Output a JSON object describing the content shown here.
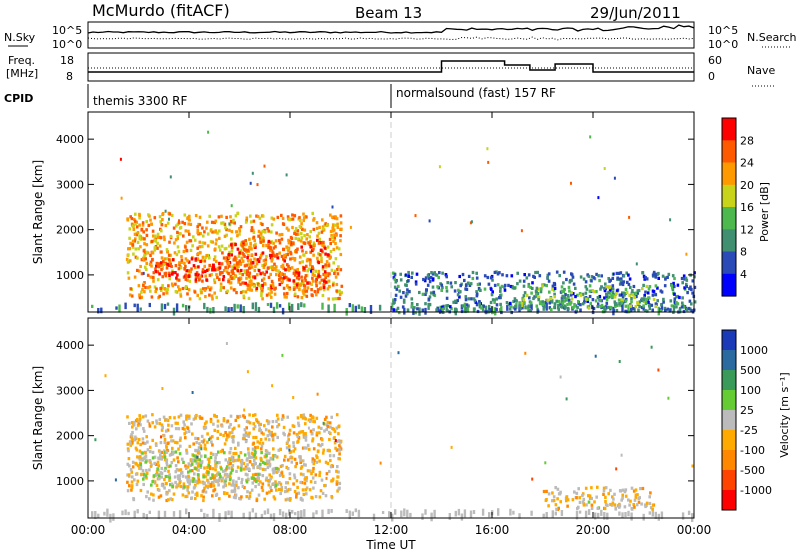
{
  "header": {
    "station": "McMurdo (fitACF)",
    "beam": "Beam 13",
    "date": "29/Jun/2011"
  },
  "top_panels": {
    "nsky_label": "N.Sky",
    "nsky_ticks": [
      "10^5",
      "10^0"
    ],
    "nsearch_label": "N.Search",
    "nsearch_ticks": [
      "10^5",
      "10^0"
    ],
    "freq_label_1": "Freq.",
    "freq_label_2": "[MHz]",
    "freq_ticks": [
      "18",
      "8"
    ],
    "nave_label": "Nave",
    "nave_ticks": [
      "60",
      "0"
    ],
    "cpid_label": "CPID",
    "cpid_segments": [
      {
        "text": "themis 3300 RF",
        "start_hour": 0
      },
      {
        "text": "normalsound (fast) 157 RF",
        "start_hour": 12
      }
    ]
  },
  "colors": {
    "power_scale": [
      "#0000ff",
      "#2a4ab8",
      "#3f8f70",
      "#4db84d",
      "#c8d41a",
      "#ff9900",
      "#ff5a00",
      "#ff0000"
    ],
    "velocity_scale": [
      "#ff0000",
      "#ff4400",
      "#ff8800",
      "#ffaa00",
      "#bbbbbb",
      "#66cc33",
      "#3a9a5a",
      "#2a6aa0",
      "#1a3ab8"
    ],
    "ground_scatter": "#9a9a9a"
  },
  "chart_data": [
    {
      "type": "heatmap",
      "name": "power",
      "ylabel": "Slant Range [km]",
      "ylim": [
        180,
        4600
      ],
      "xlim": [
        0,
        24
      ],
      "yticks": [
        "4000",
        "3000",
        "2000",
        "1000"
      ],
      "colorbar_label": "Power [dB]",
      "colorbar_ticks": [
        "28",
        "24",
        "20",
        "16",
        "12",
        "8",
        "4"
      ],
      "colorbar_range": [
        0,
        32
      ],
      "regions": [
        {
          "x0": 1.5,
          "x1": 10.0,
          "y0": 500,
          "y1": 2400,
          "value": 22
        },
        {
          "x0": 2.5,
          "x1": 5.8,
          "y0": 900,
          "y1": 1400,
          "value": 28
        },
        {
          "x0": 5.5,
          "x1": 9.5,
          "y0": 700,
          "y1": 1800,
          "value": 26
        },
        {
          "x0": 12.0,
          "x1": 24.0,
          "y0": 200,
          "y1": 1100,
          "value": 8
        },
        {
          "x0": 17.0,
          "x1": 22.5,
          "y0": 300,
          "y1": 800,
          "value": 14
        }
      ]
    },
    {
      "type": "heatmap",
      "name": "velocity",
      "ylabel": "Slant Range [km]",
      "ylim": [
        180,
        4600
      ],
      "xlim": [
        0,
        24
      ],
      "yticks": [
        "4000",
        "3000",
        "2000",
        "1000"
      ],
      "colorbar_label": "Velocity [m s⁻¹]",
      "colorbar_ticks": [
        "1000",
        "500",
        "100",
        "25",
        "-25",
        "-100",
        "-500",
        "-1000"
      ],
      "colorbar_range": [
        -1000,
        1000
      ],
      "regions": [
        {
          "x0": 1.5,
          "x1": 10.0,
          "y0": 600,
          "y1": 2500,
          "value": -150
        },
        {
          "x0": 2.0,
          "x1": 7.5,
          "y0": 900,
          "y1": 1700,
          "value": 60
        },
        {
          "x0": 18.0,
          "x1": 22.5,
          "y0": 400,
          "y1": 900,
          "value": -120
        }
      ],
      "xlabel": "Time UT",
      "xticks": [
        "00:00",
        "04:00",
        "08:00",
        "12:00",
        "16:00",
        "20:00",
        "00:00"
      ]
    }
  ]
}
